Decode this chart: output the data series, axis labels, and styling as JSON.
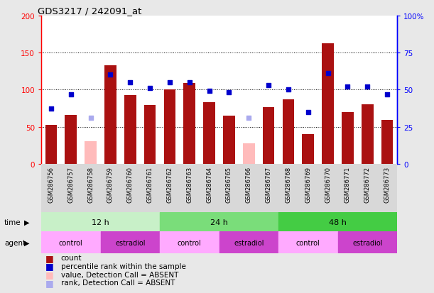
{
  "title": "GDS3217 / 242091_at",
  "samples": [
    "GSM286756",
    "GSM286757",
    "GSM286758",
    "GSM286759",
    "GSM286760",
    "GSM286761",
    "GSM286762",
    "GSM286763",
    "GSM286764",
    "GSM286765",
    "GSM286766",
    "GSM286767",
    "GSM286768",
    "GSM286769",
    "GSM286770",
    "GSM286771",
    "GSM286772",
    "GSM286773"
  ],
  "counts": [
    52,
    66,
    null,
    133,
    93,
    79,
    100,
    109,
    83,
    65,
    null,
    76,
    87,
    40,
    162,
    70,
    80,
    59
  ],
  "counts_absent": [
    null,
    null,
    30,
    null,
    null,
    null,
    null,
    null,
    null,
    null,
    28,
    null,
    null,
    null,
    null,
    null,
    null,
    null
  ],
  "percentile_ranks": [
    37,
    47,
    null,
    60,
    55,
    51,
    55,
    55,
    49,
    48,
    null,
    53,
    50,
    35,
    61,
    52,
    52,
    47
  ],
  "percentile_ranks_absent": [
    null,
    null,
    31,
    null,
    null,
    null,
    null,
    null,
    null,
    null,
    31,
    null,
    null,
    null,
    null,
    null,
    null,
    null
  ],
  "time_groups": [
    {
      "label": "12 h",
      "start": 0,
      "end": 6
    },
    {
      "label": "24 h",
      "start": 6,
      "end": 12
    },
    {
      "label": "48 h",
      "start": 12,
      "end": 18
    }
  ],
  "time_colors": [
    "#c8f0c8",
    "#7add7a",
    "#44cc44"
  ],
  "agent_groups": [
    {
      "label": "control",
      "start": 0,
      "end": 3
    },
    {
      "label": "estradiol",
      "start": 3,
      "end": 6
    },
    {
      "label": "control",
      "start": 6,
      "end": 9
    },
    {
      "label": "estradiol",
      "start": 9,
      "end": 12
    },
    {
      "label": "control",
      "start": 12,
      "end": 15
    },
    {
      "label": "estradiol",
      "start": 15,
      "end": 18
    }
  ],
  "agent_colors": {
    "control": "#ffaaff",
    "estradiol": "#cc44cc"
  },
  "bar_color": "#aa1111",
  "bar_absent_color": "#ffbbbb",
  "dot_color": "#0000cc",
  "dot_absent_color": "#aaaaee",
  "left_ylim": [
    0,
    200
  ],
  "right_ylim": [
    0,
    100
  ],
  "left_yticks": [
    0,
    50,
    100,
    150,
    200
  ],
  "right_yticks": [
    0,
    25,
    50,
    75,
    100
  ],
  "right_yticklabels": [
    "0",
    "25",
    "50",
    "75",
    "100%"
  ],
  "grid_values": [
    50,
    100,
    150
  ],
  "background_color": "#e8e8e8",
  "plot_bg_color": "#ffffff",
  "xtick_bg_color": "#d8d8d8"
}
